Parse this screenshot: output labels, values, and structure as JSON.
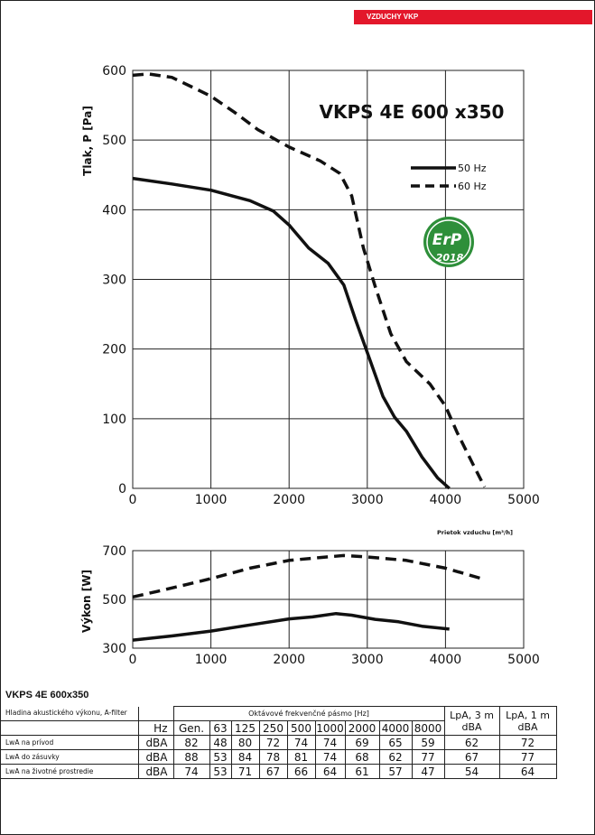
{
  "header_tag": "VZDUCHY VKP",
  "chart_data": [
    {
      "type": "line",
      "title": "VKPS 4E 600 x350",
      "xlabel": "Prietok vzduchu [m³/h]",
      "ylabel": "Tlak, P [Pa]",
      "xlim": [
        0,
        5000
      ],
      "ylim": [
        0,
        600
      ],
      "xticks": [
        "0",
        "1000",
        "2000",
        "3000",
        "4000",
        "5000"
      ],
      "yticks": [
        "0",
        "100",
        "200",
        "300",
        "400",
        "500",
        "600"
      ],
      "grid": true,
      "legend": "top-right",
      "series": [
        {
          "name": "50 Hz",
          "style": "solid",
          "x": [
            0,
            500,
            1000,
            1500,
            1800,
            2000,
            2250,
            2500,
            2700,
            2850,
            3000,
            3200,
            3350,
            3500,
            3700,
            3900,
            4050
          ],
          "y": [
            445,
            437,
            428,
            413,
            398,
            378,
            345,
            323,
            292,
            242,
            195,
            132,
            102,
            82,
            45,
            15,
            0
          ]
        },
        {
          "name": "60 Hz",
          "style": "dashed",
          "x": [
            0,
            200,
            500,
            800,
            1000,
            1300,
            1600,
            2000,
            2400,
            2650,
            2800,
            2950,
            3100,
            3300,
            3500,
            3800,
            4000,
            4150,
            4350,
            4500
          ],
          "y": [
            593,
            595,
            590,
            574,
            563,
            540,
            515,
            490,
            470,
            452,
            420,
            345,
            290,
            222,
            182,
            150,
            118,
            80,
            35,
            2
          ]
        }
      ],
      "badge": {
        "line1": "ErP",
        "line2": "2018",
        "color": "#2e8f3a"
      }
    },
    {
      "type": "line",
      "xlabel": "",
      "ylabel": "Výkon [W]",
      "xlim": [
        0,
        5000
      ],
      "ylim": [
        300,
        700
      ],
      "xticks": [
        "0",
        "1000",
        "2000",
        "3000",
        "4000",
        "5000"
      ],
      "yticks": [
        "300",
        "500",
        "700"
      ],
      "grid": true,
      "series": [
        {
          "name": "50 Hz",
          "style": "solid",
          "x": [
            0,
            500,
            1000,
            1500,
            2000,
            2300,
            2600,
            2800,
            3100,
            3400,
            3700,
            4050
          ],
          "y": [
            333,
            350,
            370,
            395,
            420,
            428,
            442,
            435,
            418,
            408,
            390,
            378
          ]
        },
        {
          "name": "60 Hz",
          "style": "dashed",
          "x": [
            0,
            300,
            700,
            1000,
            1500,
            2000,
            2400,
            2700,
            3000,
            3500,
            4000,
            4500
          ],
          "y": [
            510,
            532,
            562,
            585,
            628,
            660,
            672,
            680,
            674,
            660,
            628,
            582
          ]
        }
      ]
    }
  ],
  "table": {
    "title": "VKPS 4E 600x350",
    "hdr_label": "Hladina akustického výkonu, A-filter",
    "hdr_bands_title": "Oktávové frekvenčné pásmo [Hz]",
    "hdr_lpa3_1": "LpA, 3 m",
    "hdr_lpa3_2": "dBA",
    "hdr_lpa1_1": "LpA, 1 m",
    "hdr_lpa1_2": "dBA",
    "hz_label": "Hz",
    "bands": [
      "Gen.",
      "63",
      "125",
      "250",
      "500",
      "1000",
      "2000",
      "4000",
      "8000"
    ],
    "rows": [
      {
        "label": "LwA na prívod",
        "unit": "dBA",
        "values": [
          "82",
          "48",
          "80",
          "72",
          "74",
          "74",
          "69",
          "65",
          "59"
        ],
        "lpa3": "62",
        "lpa1": "72"
      },
      {
        "label": "LwA do zásuvky",
        "unit": "dBA",
        "values": [
          "88",
          "53",
          "84",
          "78",
          "81",
          "74",
          "68",
          "62",
          "77"
        ],
        "lpa3": "67",
        "lpa1": "77"
      },
      {
        "label": "LwA na životné prostredie",
        "unit": "dBA",
        "values": [
          "74",
          "53",
          "71",
          "67",
          "66",
          "64",
          "61",
          "57",
          "47"
        ],
        "lpa3": "54",
        "lpa1": "64"
      }
    ]
  }
}
